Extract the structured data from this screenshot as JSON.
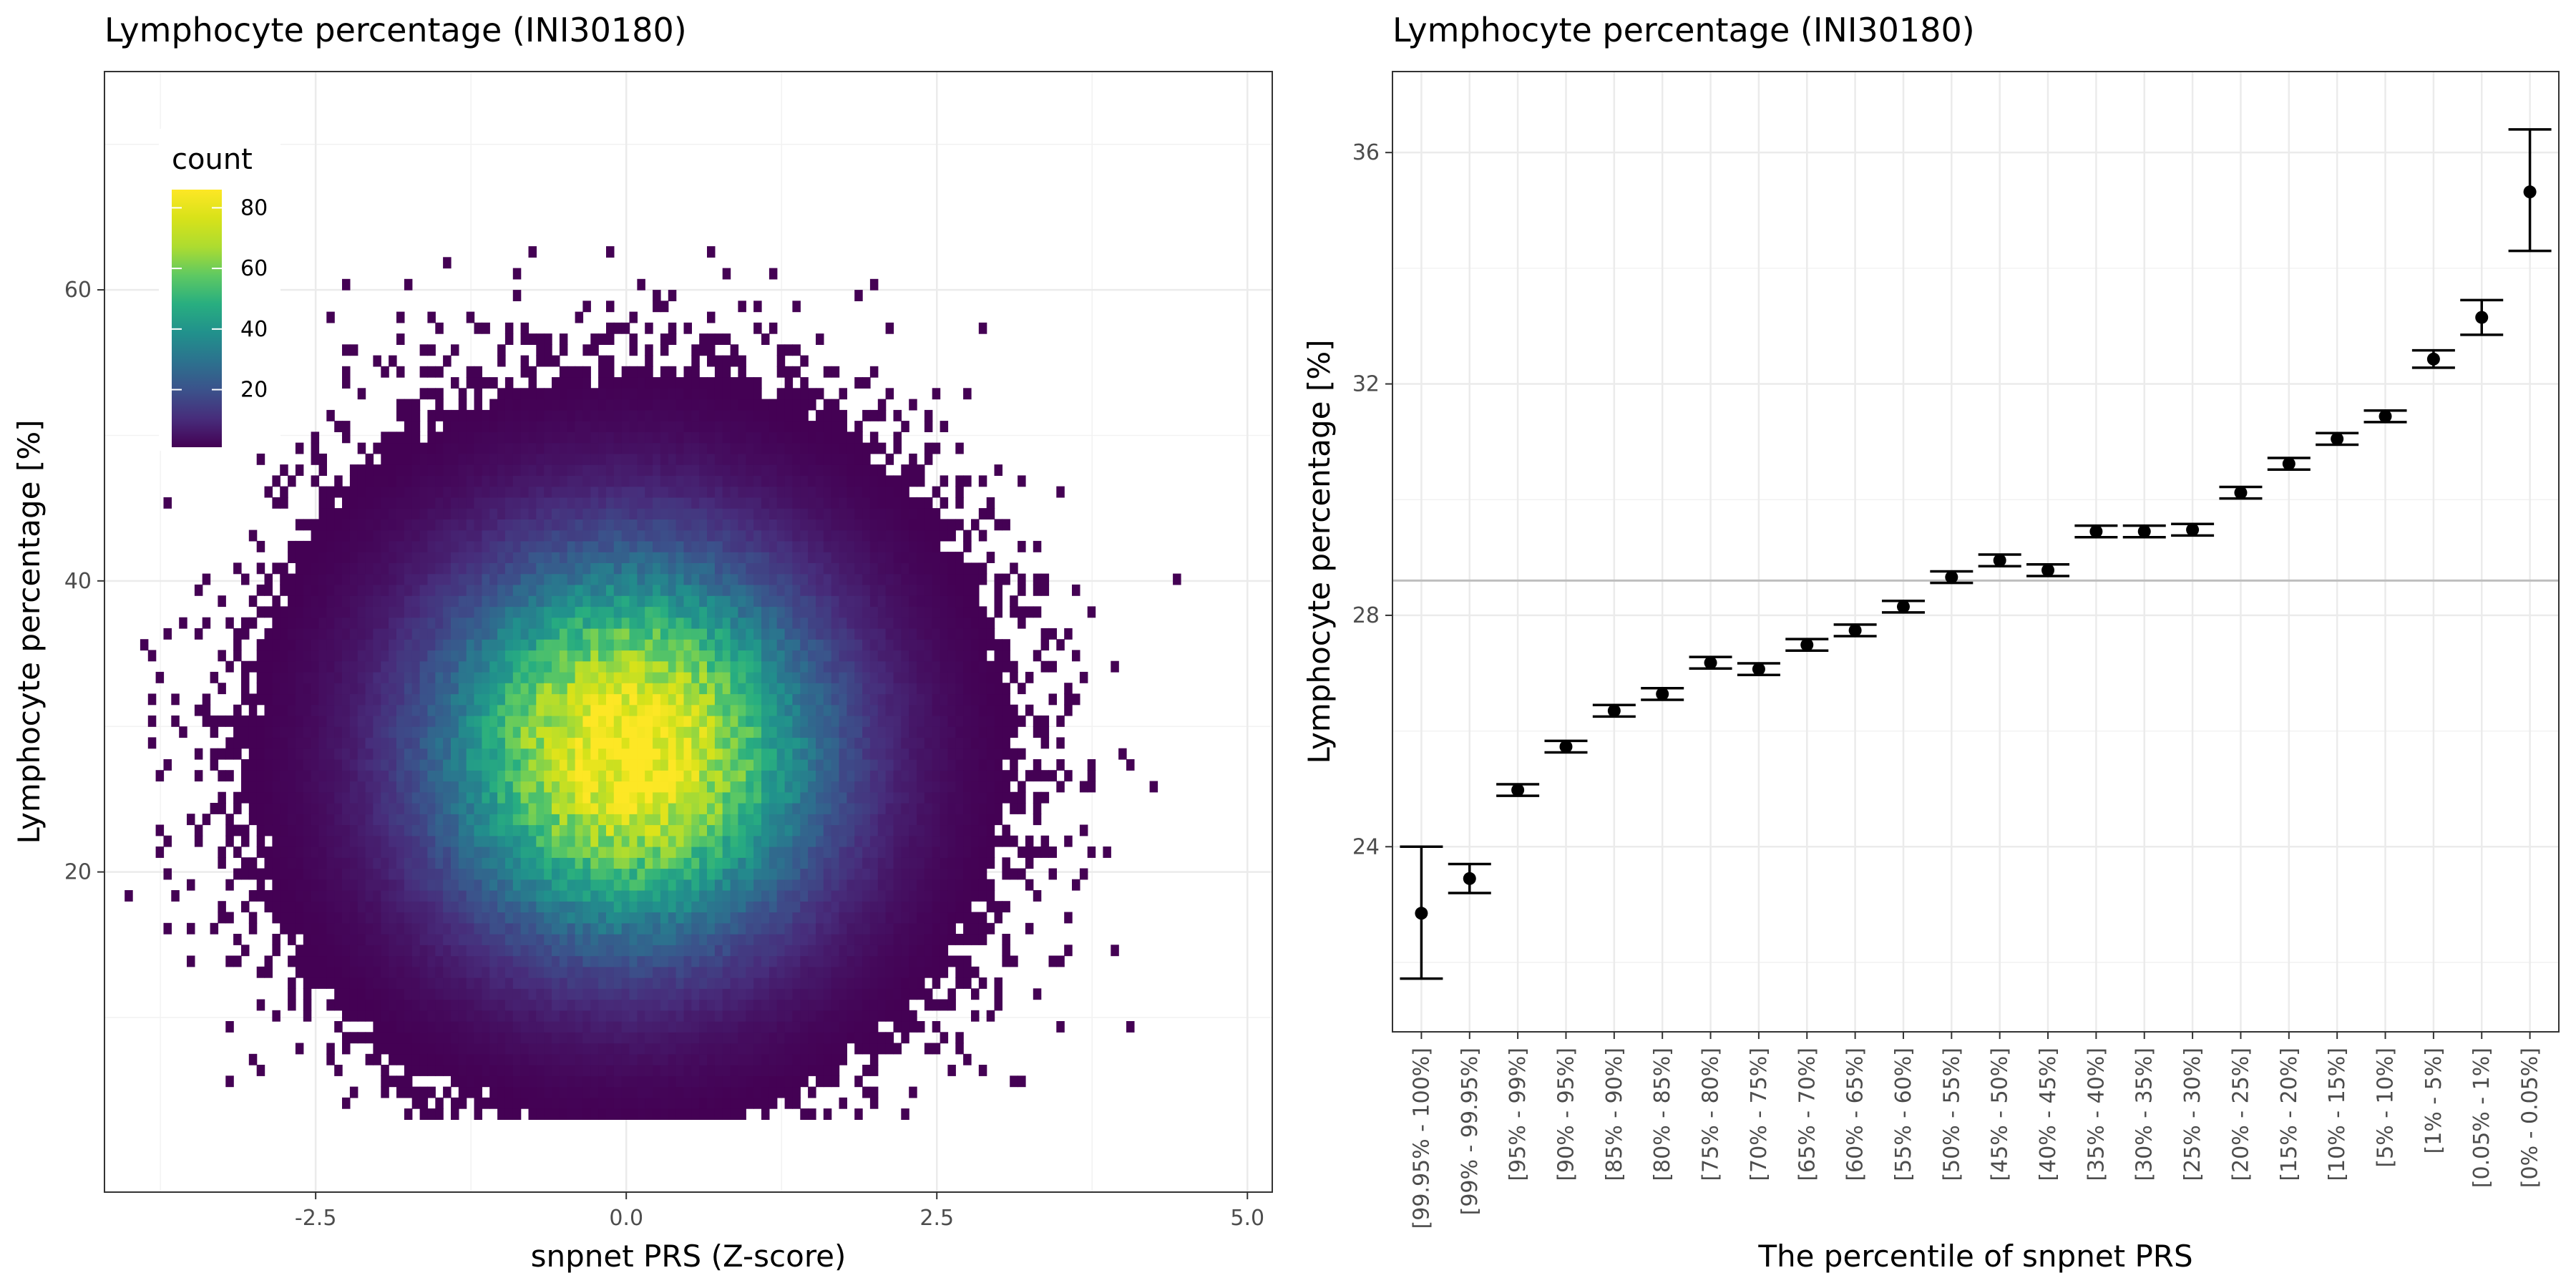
{
  "chart_data": [
    {
      "type": "heatmap",
      "title": "Lymphocyte percentage (INI30180)",
      "xlabel": "snpnet PRS (Z-score)",
      "ylabel": "Lymphocyte percentage [%]",
      "xlim": [
        -4.2,
        5.2
      ],
      "ylim": [
        -2,
        75
      ],
      "xticks": [
        -2.5,
        0.0,
        2.5,
        5.0
      ],
      "xtick_labels": [
        "-2.5",
        "0.0",
        "2.5",
        "5.0"
      ],
      "yticks": [
        20,
        40,
        60
      ],
      "ytick_labels": [
        "20",
        "40",
        "60"
      ],
      "grid": true,
      "legend": {
        "title": "count",
        "position": "top-left",
        "scale": "viridis",
        "range": [
          1,
          86
        ],
        "ticks": [
          20,
          40,
          60,
          80
        ],
        "tick_labels": [
          "20",
          "40",
          "60",
          "80"
        ]
      },
      "peak": {
        "x": 0.0,
        "y": 28,
        "count": 86
      },
      "spread": {
        "sd_x": 1.0,
        "sd_y": 8.5
      }
    },
    {
      "type": "scatter",
      "title": "Lymphocyte percentage (INI30180)",
      "xlabel": "The percentile of snpnet PRS",
      "ylabel": "Lymphocyte percentage [%]",
      "ylim": [
        20.8,
        37.4
      ],
      "yticks": [
        24,
        28,
        32,
        36
      ],
      "ytick_labels": [
        "24",
        "28",
        "32",
        "36"
      ],
      "grid": true,
      "reference_line": 28.6,
      "categories": [
        "[99.95% - 100%]",
        "[99% - 99.95%]",
        "[95% - 99%]",
        "[90% - 95%]",
        "[85% - 90%]",
        "[80% - 85%]",
        "[75% - 80%]",
        "[70% - 75%]",
        "[65% - 70%]",
        "[60% - 65%]",
        "[55% - 60%]",
        "[50% - 55%]",
        "[45% - 50%]",
        "[40% - 45%]",
        "[35% - 40%]",
        "[30% - 35%]",
        "[25% - 30%]",
        "[20% - 25%]",
        "[15% - 20%]",
        "[10% - 15%]",
        "[5% - 10%]",
        "[1% - 5%]",
        "[0.05% - 1%]",
        "[0% - 0.05%]"
      ],
      "series": [
        {
          "values": [
            22.85,
            23.45,
            24.98,
            25.73,
            26.35,
            26.64,
            27.18,
            27.07,
            27.49,
            27.74,
            28.15,
            28.66,
            28.95,
            28.78,
            29.45,
            29.45,
            29.48,
            30.12,
            30.62,
            31.05,
            31.44,
            32.43,
            33.15,
            35.32
          ],
          "lower": [
            21.72,
            23.2,
            24.88,
            25.63,
            26.25,
            26.54,
            27.08,
            26.97,
            27.39,
            27.64,
            28.05,
            28.56,
            28.85,
            28.68,
            29.35,
            29.35,
            29.38,
            30.02,
            30.52,
            30.95,
            31.34,
            32.28,
            32.85,
            34.3
          ],
          "upper": [
            24.0,
            23.7,
            25.08,
            25.83,
            26.45,
            26.74,
            27.28,
            27.17,
            27.59,
            27.84,
            28.25,
            28.76,
            29.05,
            28.88,
            29.55,
            29.55,
            29.58,
            30.22,
            30.72,
            31.15,
            31.54,
            32.58,
            33.45,
            36.4
          ]
        }
      ]
    }
  ]
}
